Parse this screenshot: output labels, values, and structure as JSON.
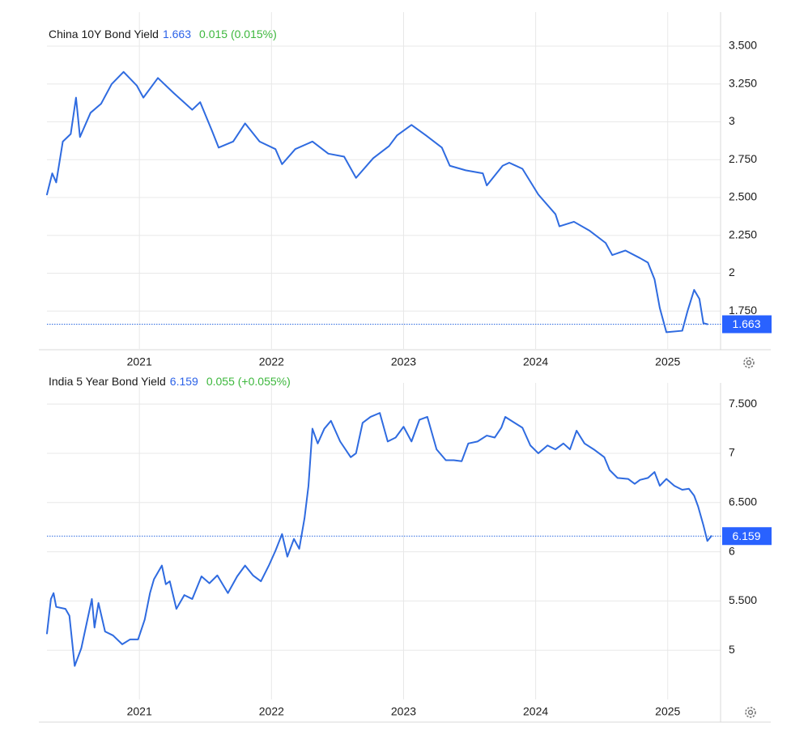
{
  "chart_data": [
    {
      "type": "line",
      "title": "China 10Y Bond Yield",
      "change": "0.015 (0.015%)",
      "color": "#2f6be0",
      "grid": true,
      "xlim": [
        2020.3,
        2025.4
      ],
      "xticks": [
        2021,
        2022,
        2023,
        2024,
        2025
      ],
      "ylim": [
        1.5,
        3.65
      ],
      "yticks": [
        {
          "value": 1.75,
          "label": "1.750"
        },
        2,
        {
          "value": 2.25,
          "label": "2.250"
        },
        {
          "value": 2.5,
          "label": "2.500"
        },
        {
          "value": 2.75,
          "label": "2.750"
        },
        3,
        {
          "value": 3.25,
          "label": "3.250"
        },
        {
          "value": 3.5,
          "label": "3.500"
        }
      ],
      "x": [
        2020.3,
        2020.34,
        2020.37,
        2020.42,
        2020.48,
        2020.52,
        2020.55,
        2020.63,
        2020.71,
        2020.79,
        2020.88,
        2020.98,
        2021.03,
        2021.14,
        2021.26,
        2021.4,
        2021.46,
        2021.55,
        2021.6,
        2021.71,
        2021.8,
        2021.91,
        2022.03,
        2022.08,
        2022.18,
        2022.31,
        2022.43,
        2022.55,
        2022.64,
        2022.77,
        2022.89,
        2022.95,
        2023.06,
        2023.17,
        2023.29,
        2023.35,
        2023.47,
        2023.6,
        2023.63,
        2023.75,
        2023.8,
        2023.9,
        2024.02,
        2024.15,
        2024.18,
        2024.29,
        2024.41,
        2024.53,
        2024.58,
        2024.68,
        2024.79,
        2024.85,
        2024.9,
        2024.94,
        2024.99,
        2025.11,
        2025.15,
        2025.2,
        2025.24,
        2025.27,
        2025.3
      ],
      "values": [
        2.52,
        2.66,
        2.6,
        2.87,
        2.92,
        3.16,
        2.9,
        3.06,
        3.12,
        3.25,
        3.33,
        3.24,
        3.16,
        3.29,
        3.19,
        3.08,
        3.13,
        2.94,
        2.83,
        2.87,
        2.99,
        2.87,
        2.82,
        2.72,
        2.82,
        2.87,
        2.79,
        2.77,
        2.63,
        2.76,
        2.84,
        2.91,
        2.98,
        2.91,
        2.83,
        2.71,
        2.68,
        2.66,
        2.58,
        2.71,
        2.73,
        2.69,
        2.52,
        2.39,
        2.31,
        2.34,
        2.28,
        2.2,
        2.12,
        2.15,
        2.1,
        2.07,
        1.96,
        1.77,
        1.61,
        1.62,
        1.75,
        1.89,
        1.83,
        1.67,
        1.663
      ]
    },
    {
      "type": "line",
      "title": "India 5 Year Bond Yield",
      "change": "0.055 (+0.055%)",
      "color": "#2f6be0",
      "grid": true,
      "xlim": [
        2020.3,
        2025.4
      ],
      "xticks": [
        2021,
        2022,
        2023,
        2024,
        2025
      ],
      "ylim": [
        4.5,
        7.6
      ],
      "yticks": [
        5,
        {
          "value": 5.5,
          "label": "5.500"
        },
        6,
        {
          "value": 6.5,
          "label": "6.500"
        },
        7,
        {
          "value": 7.5,
          "label": "7.500"
        }
      ],
      "x": [
        2020.3,
        2020.33,
        2020.35,
        2020.37,
        2020.44,
        2020.47,
        2020.51,
        2020.56,
        2020.6,
        2020.64,
        2020.66,
        2020.69,
        2020.74,
        2020.8,
        2020.87,
        2020.93,
        2020.99,
        2021.04,
        2021.08,
        2021.11,
        2021.17,
        2021.2,
        2021.23,
        2021.28,
        2021.34,
        2021.4,
        2021.47,
        2021.53,
        2021.59,
        2021.63,
        2021.67,
        2021.74,
        2021.8,
        2021.86,
        2021.92,
        2021.98,
        2022.03,
        2022.08,
        2022.12,
        2022.17,
        2022.21,
        2022.25,
        2022.28,
        2022.31,
        2022.35,
        2022.4,
        2022.45,
        2022.52,
        2022.6,
        2022.64,
        2022.69,
        2022.75,
        2022.82,
        2022.88,
        2022.94,
        2023.0,
        2023.06,
        2023.12,
        2023.18,
        2023.25,
        2023.32,
        2023.38,
        2023.44,
        2023.49,
        2023.56,
        2023.63,
        2023.69,
        2023.74,
        2023.77,
        2023.84,
        2023.9,
        2023.96,
        2024.02,
        2024.09,
        2024.15,
        2024.21,
        2024.26,
        2024.31,
        2024.37,
        2024.44,
        2024.52,
        2024.56,
        2024.62,
        2024.7,
        2024.75,
        2024.79,
        2024.85,
        2024.9,
        2024.94,
        2024.99,
        2025.05,
        2025.11,
        2025.16,
        2025.2,
        2025.23,
        2025.27,
        2025.3,
        2025.33
      ],
      "values": [
        5.17,
        5.52,
        5.58,
        5.44,
        5.42,
        5.35,
        4.84,
        5.02,
        5.27,
        5.52,
        5.23,
        5.48,
        5.19,
        5.15,
        5.06,
        5.11,
        5.11,
        5.31,
        5.58,
        5.72,
        5.86,
        5.67,
        5.7,
        5.42,
        5.56,
        5.52,
        5.75,
        5.68,
        5.76,
        5.67,
        5.58,
        5.75,
        5.86,
        5.76,
        5.7,
        5.86,
        6.01,
        6.18,
        5.95,
        6.13,
        6.03,
        6.34,
        6.67,
        7.25,
        7.1,
        7.25,
        7.33,
        7.12,
        6.96,
        7.0,
        7.31,
        7.37,
        7.41,
        7.12,
        7.16,
        7.27,
        7.12,
        7.34,
        7.37,
        7.04,
        6.93,
        6.93,
        6.92,
        7.1,
        7.12,
        7.18,
        7.16,
        7.26,
        7.37,
        7.31,
        7.26,
        7.08,
        7.0,
        7.08,
        7.04,
        7.1,
        7.04,
        7.23,
        7.1,
        7.04,
        6.96,
        6.83,
        6.75,
        6.74,
        6.69,
        6.73,
        6.75,
        6.81,
        6.67,
        6.74,
        6.67,
        6.63,
        6.64,
        6.57,
        6.46,
        6.27,
        6.11,
        6.159
      ]
    }
  ]
}
